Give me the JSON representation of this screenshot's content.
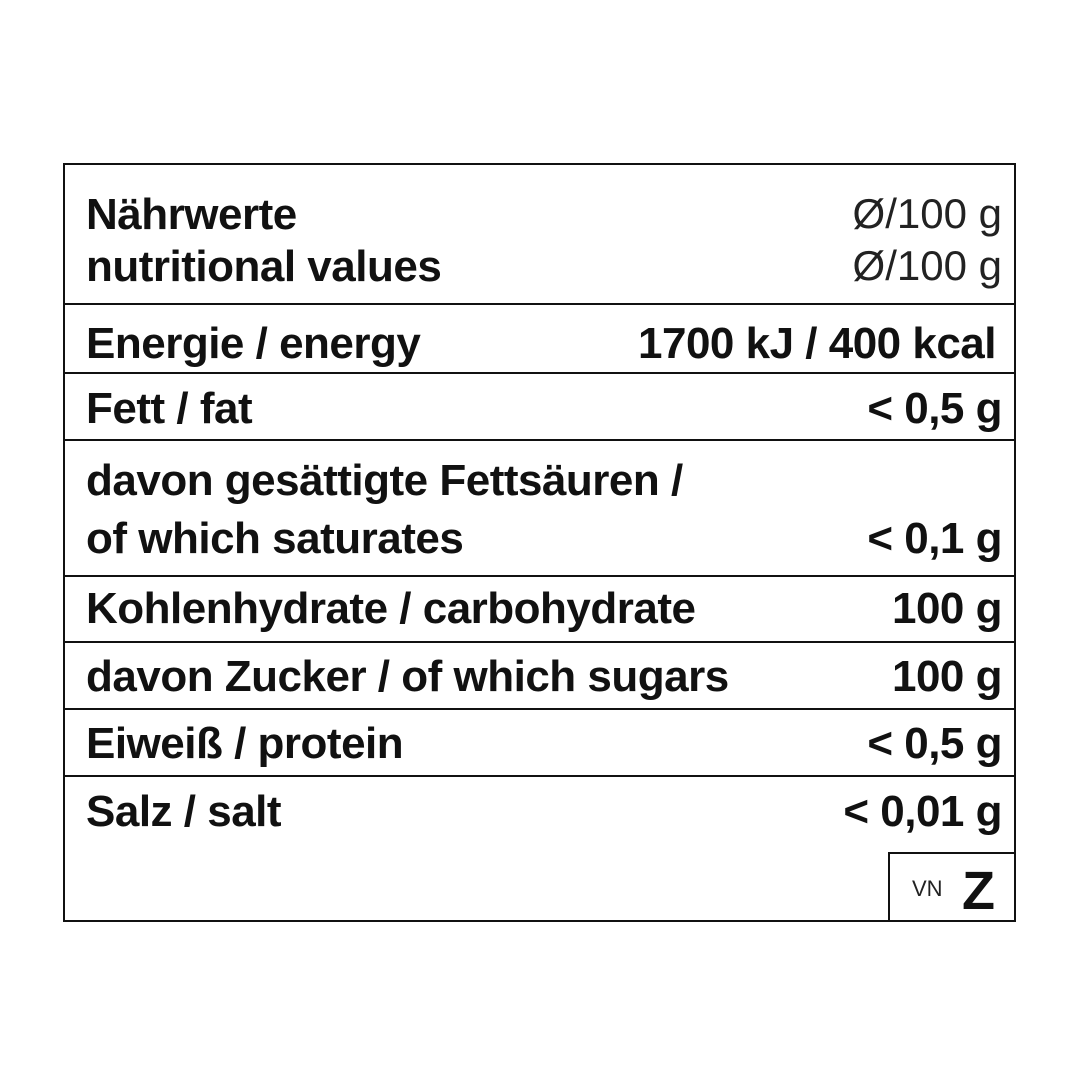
{
  "header": {
    "title_de": "Nährwerte",
    "title_en": "nutritional values",
    "per_de": "Ø/100 g",
    "per_en": "Ø/100 g"
  },
  "rows": [
    {
      "label": "Energie / energy",
      "value": "1700 kJ / 400 kcal"
    },
    {
      "label": "Fett / fat",
      "value": "< 0,5 g"
    },
    {
      "label_line1": "davon gesättigte Fettsäuren /",
      "label_line2": "of which saturates",
      "value": "< 0,1 g"
    },
    {
      "label": "Kohlenhydrate / carbohydrate",
      "value": "100 g"
    },
    {
      "label": "davon Zucker / of which sugars",
      "value": "100 g"
    },
    {
      "label": "Eiweiß / protein",
      "value": "< 0,5 g"
    },
    {
      "label": "Salz / salt",
      "value": "< 0,01 g"
    }
  ],
  "badge": {
    "small": "VN",
    "big": "Z"
  }
}
